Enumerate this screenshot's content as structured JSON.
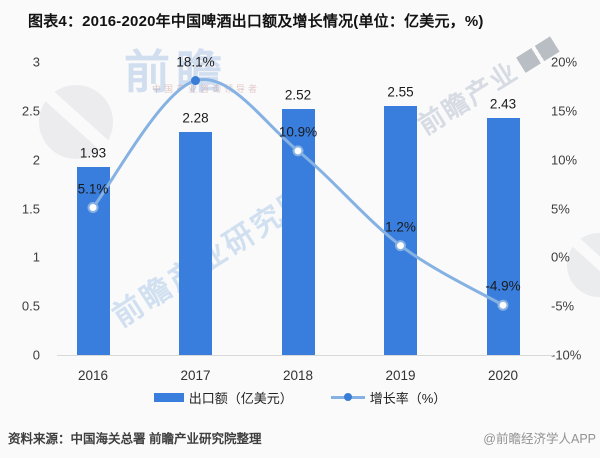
{
  "title": "图表4：2016-2020年中国啤酒出口额及增长情况(单位：亿美元，%)",
  "source": {
    "left": "资料来源：中国海关总署 前瞻产业研究院整理",
    "right": "@前瞻经济学人APP"
  },
  "watermarks": {
    "brand": "前瞻",
    "brand_sub": "中国产业咨询领导者",
    "center": "前瞻产业研究院",
    "top_right": "前瞻产业"
  },
  "colors": {
    "bar": "#3a7edd",
    "line": "#85b1e3",
    "marker_solid": "#3a7dd6",
    "marker_hollow_fill": "#ffffff",
    "axis_line": "#d9d9d9",
    "label_text": "#1a1a1a"
  },
  "legend": [
    {
      "label": "出口额（亿美元）",
      "type": "bar"
    },
    {
      "label": "增长率（%）",
      "type": "line"
    }
  ],
  "chart_data": {
    "type": "bar+line",
    "title": "图表4：2016-2020年中国啤酒出口额及增长情况(单位：亿美元，%)",
    "categories": [
      "2016",
      "2017",
      "2018",
      "2019",
      "2020"
    ],
    "series": [
      {
        "name": "出口额（亿美元）",
        "type": "bar",
        "axis": "left",
        "values": [
          1.93,
          2.28,
          2.52,
          2.55,
          2.43
        ],
        "labels": [
          "1.93",
          "2.28",
          "2.52",
          "2.55",
          "2.43"
        ]
      },
      {
        "name": "增长率（%）",
        "type": "line",
        "axis": "right",
        "values": [
          5.1,
          18.1,
          10.9,
          1.2,
          -4.9
        ],
        "labels": [
          "5.1%",
          "18.1%",
          "10.9%",
          "1.2%",
          "-4.9%"
        ]
      }
    ],
    "left_axis": {
      "min": 0,
      "max": 3,
      "ticks": [
        "3",
        "2.5",
        "2",
        "1.5",
        "1",
        "0.5",
        "0"
      ]
    },
    "right_axis": {
      "min": -10,
      "max": 20,
      "ticks": [
        "20%",
        "15%",
        "10%",
        "5%",
        "0%",
        "-5%",
        "-10%"
      ]
    },
    "grid": false,
    "legend_position": "bottom",
    "xlabel": "",
    "ylabel_left": "亿美元",
    "ylabel_right": "%"
  }
}
